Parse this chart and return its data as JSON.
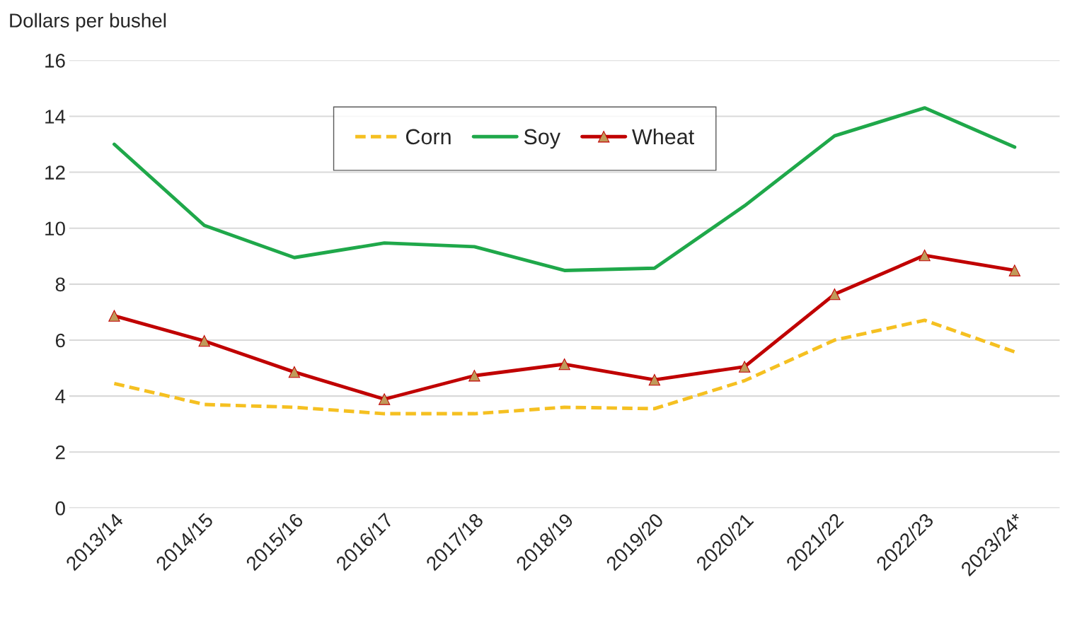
{
  "chart_data": {
    "type": "line",
    "ylabel": "Dollars per bushel",
    "categories": [
      "2013/14",
      "2014/15",
      "2015/16",
      "2016/17",
      "2017/18",
      "2018/19",
      "2019/20",
      "2020/21",
      "2021/22",
      "2022/23",
      "2023/24*"
    ],
    "series": [
      {
        "name": "Corn",
        "color": "#f5c021",
        "line_style": "dashed",
        "marker": "none",
        "values": [
          4.45,
          3.7,
          3.6,
          3.37,
          3.37,
          3.6,
          3.55,
          4.55,
          6.0,
          6.71,
          5.58
        ]
      },
      {
        "name": "Soy",
        "color": "#1fa84a",
        "line_style": "solid",
        "marker": "none",
        "values": [
          13.0,
          10.1,
          8.95,
          9.47,
          9.34,
          8.49,
          8.57,
          10.8,
          13.3,
          14.3,
          12.9
        ]
      },
      {
        "name": "Wheat",
        "color": "#c00000",
        "line_style": "solid",
        "marker": "triangle",
        "values": [
          6.87,
          5.97,
          4.86,
          3.89,
          4.73,
          5.14,
          4.58,
          5.05,
          7.64,
          9.03,
          8.49
        ]
      }
    ],
    "ylim": [
      0,
      16
    ],
    "yticks": [
      0,
      2,
      4,
      6,
      8,
      10,
      12,
      14,
      16
    ],
    "grid": "y",
    "legend": "top"
  }
}
